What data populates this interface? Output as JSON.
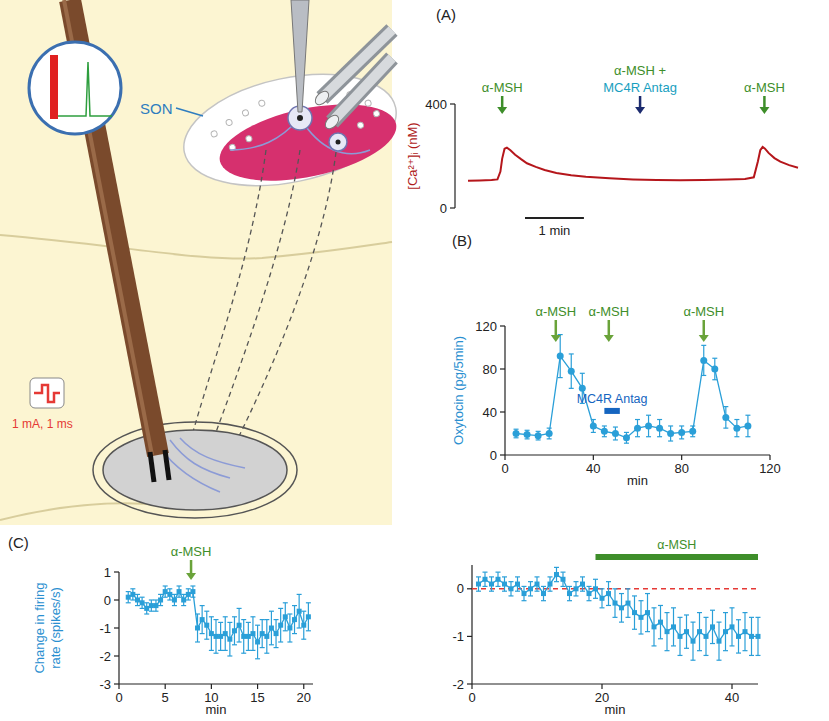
{
  "diagram": {
    "region_label": "SON",
    "stimulus_label": "1 mA, 1 ms"
  },
  "chart_data": [
    {
      "panel": "(A)",
      "type": "line",
      "y_label": "[Ca²⁺]ᵢ (nM)",
      "color": "#b5161b",
      "x": [
        0,
        0.2,
        0.4,
        0.5,
        0.55,
        0.58,
        0.62,
        0.66,
        0.72,
        0.8,
        0.9,
        1.0,
        1.15,
        1.3,
        1.5,
        1.75,
        2.0,
        2.4,
        2.8,
        3.2,
        3.6,
        4.0,
        4.4,
        4.7,
        4.85,
        4.92,
        4.96,
        5.0,
        5.04,
        5.1,
        5.2,
        5.3,
        5.45,
        5.6
      ],
      "values": [
        105,
        106,
        108,
        110,
        140,
        190,
        228,
        232,
        222,
        205,
        188,
        172,
        158,
        146,
        135,
        126,
        120,
        114,
        110,
        108,
        107,
        108,
        110,
        112,
        118,
        180,
        222,
        235,
        228,
        212,
        192,
        178,
        165,
        155
      ],
      "xlim": [
        0,
        5.6
      ],
      "ylim": [
        0,
        400
      ],
      "yticks": [
        0,
        400
      ],
      "tick_labels": "y",
      "scale_bar": {
        "value": 1,
        "label": "1 min"
      },
      "annotations": [
        {
          "lines": [
            {
              "text": "α-MSH",
              "color": "#3e8e2a"
            }
          ],
          "x": 0.58,
          "arrow_color": "#3e8e2a"
        },
        {
          "lines": [
            {
              "text": "α-MSH +",
              "color": "#3e8e2a"
            },
            {
              "text": "MC4R Antag",
              "color": "#18a0c0"
            }
          ],
          "x": 2.92,
          "arrow_color": "#1c2b6e"
        },
        {
          "lines": [
            {
              "text": "α-MSH",
              "color": "#3e8e2a"
            }
          ],
          "x": 5.03,
          "arrow_color": "#3e8e2a"
        }
      ]
    },
    {
      "panel": "(B)",
      "type": "line",
      "marker": "circle",
      "color": "#2a9fd8",
      "x_label": "min",
      "y_label": "Oxytocin (pg/5min)",
      "x": [
        5,
        10,
        15,
        20,
        25,
        30,
        35,
        40,
        45,
        50,
        55,
        60,
        65,
        70,
        75,
        80,
        85,
        90,
        95,
        100,
        105,
        110
      ],
      "values": [
        20,
        19,
        18,
        20,
        92,
        78,
        62,
        27,
        22,
        20,
        16,
        25,
        27,
        25,
        20,
        21,
        22,
        88,
        80,
        35,
        25,
        27
      ],
      "errors": [
        4,
        4,
        4,
        5,
        20,
        16,
        14,
        6,
        5,
        6,
        5,
        8,
        10,
        8,
        7,
        6,
        5,
        14,
        10,
        10,
        8,
        10
      ],
      "xlim": [
        0,
        120
      ],
      "ylim": [
        0,
        120
      ],
      "xticks": [
        0,
        40,
        80,
        120
      ],
      "yticks": [
        0,
        40,
        80,
        120
      ],
      "annotations": [
        {
          "lines": [
            {
              "text": "α-MSH",
              "color": "#3e8e2a"
            }
          ],
          "x": 23,
          "arrow_color": "#6aa33a"
        },
        {
          "lines": [
            {
              "text": "α-MSH",
              "color": "#3e8e2a"
            }
          ],
          "x": 47,
          "arrow_color": "#6aa33a"
        },
        {
          "lines": [
            {
              "text": "α-MSH",
              "color": "#3e8e2a"
            }
          ],
          "x": 90,
          "arrow_color": "#6aa33a"
        }
      ],
      "bar_annotation": {
        "text": "MC4R Antag",
        "start": 45,
        "end": 52,
        "y": 41,
        "color": "#1565c0"
      }
    },
    {
      "panel": "(C)",
      "type": "line",
      "marker": "square",
      "color": "#2a9fd8",
      "x_label": "min",
      "y_label": "Change in firing rate (spikes/s)",
      "x": [
        1,
        1.5,
        2,
        2.5,
        3,
        3.5,
        4,
        4.5,
        5,
        5.5,
        6,
        6.5,
        7,
        7.5,
        8,
        8.5,
        9,
        9.5,
        10,
        10.5,
        11,
        11.5,
        12,
        12.5,
        13,
        13.5,
        14,
        14.5,
        15,
        15.5,
        16,
        16.5,
        17,
        17.5,
        18,
        18.5,
        19,
        19.5,
        20,
        20.5
      ],
      "values": [
        0.1,
        0.2,
        0.0,
        -0.1,
        -0.3,
        -0.2,
        -0.2,
        0.0,
        0.3,
        0.2,
        0.0,
        0.3,
        0.0,
        0.2,
        0.3,
        -1.0,
        -0.7,
        -0.9,
        -1.2,
        -1.3,
        -1.3,
        -1.2,
        -1.4,
        -1.1,
        -0.9,
        -1.3,
        -1.3,
        -1.2,
        -1.5,
        -1.2,
        -1.3,
        -1.0,
        -1.2,
        -0.9,
        -0.6,
        -1.0,
        -0.7,
        -0.4,
        -0.9,
        -0.6
      ],
      "errors": [
        0.2,
        0.2,
        0.2,
        0.2,
        0.2,
        0.2,
        0.2,
        0.2,
        0.2,
        0.2,
        0.2,
        0.2,
        0.2,
        0.2,
        0.2,
        0.5,
        0.5,
        0.5,
        0.6,
        0.6,
        0.5,
        0.6,
        0.6,
        0.5,
        0.6,
        0.6,
        0.5,
        0.6,
        0.6,
        0.5,
        0.6,
        0.6,
        0.5,
        0.6,
        0.5,
        0.5,
        0.5,
        0.6,
        0.5,
        0.5
      ],
      "xlim": [
        0,
        21
      ],
      "ylim": [
        -3,
        1
      ],
      "xticks": [
        0,
        5,
        10,
        15,
        20
      ],
      "yticks": [
        1,
        0,
        -1,
        -2,
        -3
      ],
      "annotations": [
        {
          "lines": [
            {
              "text": "α-MSH",
              "color": "#3e8e2a"
            }
          ],
          "x": 7.8,
          "arrow_color": "#6aa33a"
        }
      ]
    },
    {
      "type": "line",
      "marker": "square",
      "color": "#2a9fd8",
      "x_label": "min",
      "x": [
        1,
        2,
        3,
        4,
        5,
        6,
        7,
        8,
        9,
        10,
        11,
        12,
        13,
        14,
        15,
        16,
        17,
        18,
        19,
        20,
        21,
        22,
        23,
        24,
        25,
        26,
        27,
        28,
        29,
        30,
        31,
        32,
        33,
        34,
        35,
        36,
        37,
        38,
        39,
        40,
        41,
        42,
        43,
        44
      ],
      "values": [
        0.1,
        0.2,
        0.1,
        0.2,
        0.1,
        0.0,
        0.1,
        -0.1,
        0.0,
        0.1,
        -0.1,
        0.1,
        0.3,
        0.2,
        -0.1,
        0.0,
        0.1,
        -0.1,
        0.0,
        -0.2,
        -0.1,
        -0.3,
        -0.4,
        -0.3,
        -0.5,
        -0.6,
        -0.5,
        -0.8,
        -0.7,
        -0.9,
        -0.8,
        -1.0,
        -0.9,
        -1.1,
        -0.9,
        -1.0,
        -0.8,
        -1.1,
        -0.9,
        -0.8,
        -1.0,
        -0.9,
        -1.0,
        -1.0
      ],
      "errors": [
        0.15,
        0.15,
        0.15,
        0.15,
        0.15,
        0.15,
        0.15,
        0.15,
        0.15,
        0.15,
        0.15,
        0.15,
        0.15,
        0.15,
        0.15,
        0.15,
        0.15,
        0.15,
        0.2,
        0.2,
        0.25,
        0.3,
        0.3,
        0.3,
        0.35,
        0.35,
        0.4,
        0.4,
        0.35,
        0.4,
        0.4,
        0.4,
        0.35,
        0.4,
        0.4,
        0.4,
        0.35,
        0.4,
        0.4,
        0.4,
        0.35,
        0.4,
        0.4,
        0.4
      ],
      "xlim": [
        0,
        44
      ],
      "ylim": [
        -2,
        0.5
      ],
      "xticks": [
        0,
        20,
        40
      ],
      "yticks": [
        0,
        -1,
        -2
      ],
      "reference_line": {
        "value": 0,
        "color": "#e53935",
        "line_style": "dashed"
      },
      "bar_annotation": {
        "text": "α-MSH",
        "start": 19,
        "end": 44,
        "color": "#3e8e2a"
      }
    }
  ]
}
